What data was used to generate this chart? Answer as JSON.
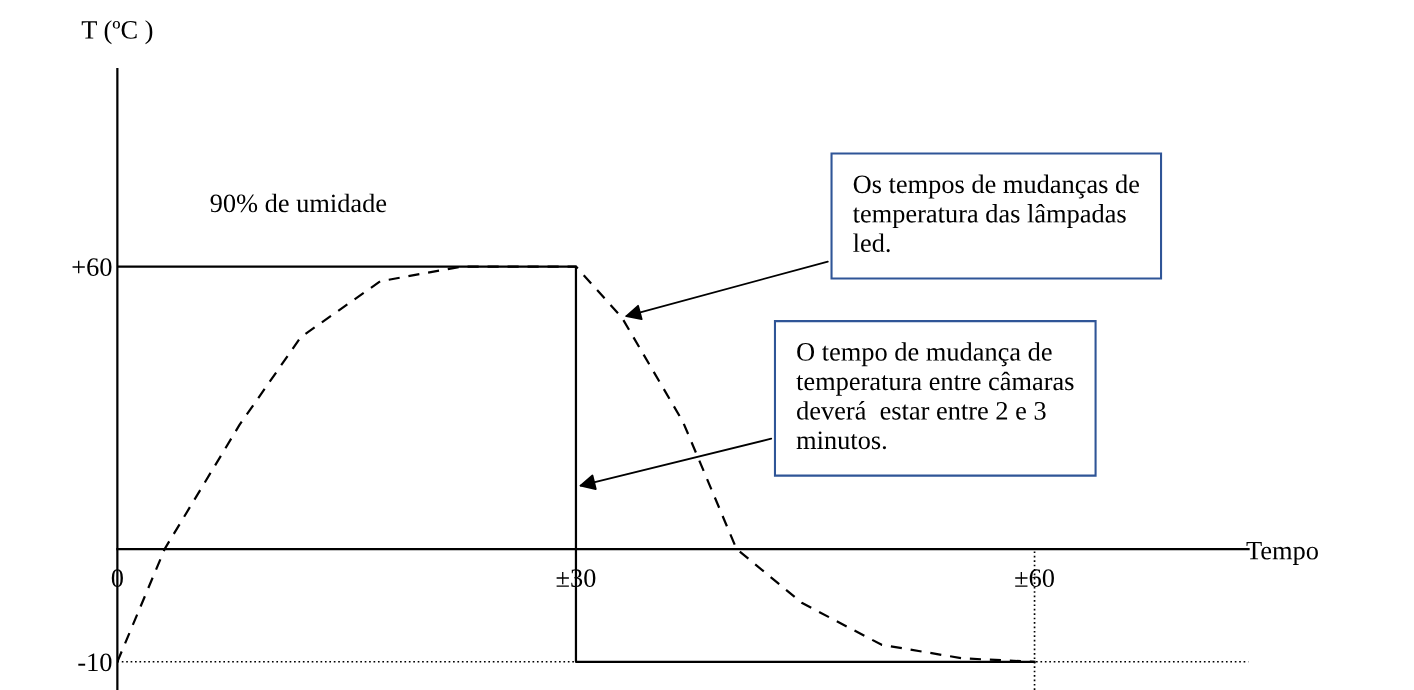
{
  "chart_data": {
    "type": "line",
    "xlabel": "Tempo",
    "ylabel": "T (ºC )",
    "series": [
      {
        "color": "#000000",
        "line_style": "solid",
        "x": [
          0,
          30,
          30,
          60
        ],
        "values": [
          60,
          60,
          -10,
          -10
        ]
      },
      {
        "color": "#000000",
        "line_style": "dashed",
        "x": [
          0,
          3.1,
          8,
          12,
          17.2,
          22.5,
          30,
          33,
          37,
          40.5,
          44.8,
          50,
          55.3,
          60
        ],
        "values": [
          -10,
          10,
          32,
          47.5,
          57.4,
          60,
          60,
          51,
          32.5,
          10,
          0.4,
          -7,
          -9.4,
          -10
        ]
      }
    ],
    "ref_lines": [
      {
        "axis": "y",
        "value": -10,
        "line_style": "dotted",
        "color": "#000000"
      },
      {
        "axis": "x",
        "value": 60,
        "line_style": "dotted",
        "color": "#000000"
      }
    ],
    "annotations": [
      "90% de umidade",
      {
        "text": "Os tempos de mudanças de\ntemperatura das lâmpadas\nled.",
        "x": 33,
        "y": 51
      },
      {
        "text": "O tempo de mudança de\ntemperatura entre câmaras\ndeverá  estar entre 2 e 3\nminutos.",
        "x": 30,
        "y": 21
      }
    ],
    "xlim": [
      0,
      74
    ],
    "ylim": [
      -15,
      95
    ],
    "xticks": [
      0,
      {
        "value": 30,
        "label": "±30"
      },
      {
        "value": 60,
        "label": "±60"
      }
    ],
    "yticks": [
      {
        "value": 60,
        "label": "+60"
      },
      {
        "value": -10,
        "label": "-10"
      }
    ],
    "grid": false,
    "legend": false,
    "marker": "none"
  }
}
